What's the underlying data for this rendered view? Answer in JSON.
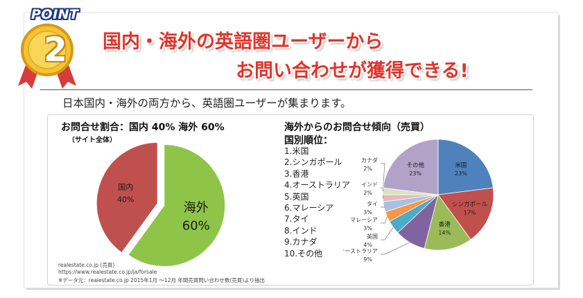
{
  "badge": {
    "label": "POINT",
    "number": "2"
  },
  "headline": {
    "line1": "国内・海外の英語圏ユーザーから",
    "line2": "お問い合わせが獲得できる!"
  },
  "lead": "日本国内・海外の両方から、英語圏ユーザーが集まります。",
  "left_chart": {
    "title": "お問合せ割合：国内 40% 海外 60%",
    "subtitle": "（サイト全体）"
  },
  "right_chart": {
    "title": "海外からのお問合せ傾向（売買）",
    "subtitle": "国別順位：",
    "ranking": [
      "1.米国",
      "2.シンガポール",
      "3.香港",
      "4.オーストラリア",
      "5.英国",
      "6.マレーシア",
      "7.タイ",
      "8.インド",
      "9.カナダ",
      "10.その他"
    ]
  },
  "source": {
    "line1": "realestate.co.jp (売買)",
    "line2": "https://www.realestate.co.jp/ja/forsale",
    "line3": "※データ元：realestate.co.jp 2015年1月 ～12月 年間売買問い合わせ数(売買)より抽出"
  },
  "chart_data": [
    {
      "type": "pie",
      "title": "お問合せ割合：国内 40% 海外 60%",
      "labels": [
        "海外",
        "国内"
      ],
      "values": [
        60,
        40
      ],
      "value_labels": [
        "60%",
        "40%"
      ],
      "colors": [
        "#8ec549",
        "#c0504d"
      ]
    },
    {
      "type": "pie",
      "title": "海外からのお問合せ傾向（売買）",
      "labels": [
        "米国",
        "シンガポール",
        "香港",
        "オーストラリア",
        "英国",
        "マレーシア",
        "タイ",
        "インド",
        "カナダ",
        "その他"
      ],
      "values": [
        23,
        17,
        14,
        9,
        4,
        3,
        3,
        2,
        2,
        23
      ],
      "value_labels": [
        "23%",
        "17%",
        "14%",
        "9%",
        "4%",
        "3%",
        "3%",
        "2%",
        "2%",
        "23%"
      ],
      "colors": [
        "#4f81bd",
        "#c0504d",
        "#9bbb59",
        "#8064a2",
        "#4bacc6",
        "#f79646",
        "#a9c1e0",
        "#e6b9b8",
        "#d7e4bd",
        "#b3a2c7"
      ]
    }
  ]
}
